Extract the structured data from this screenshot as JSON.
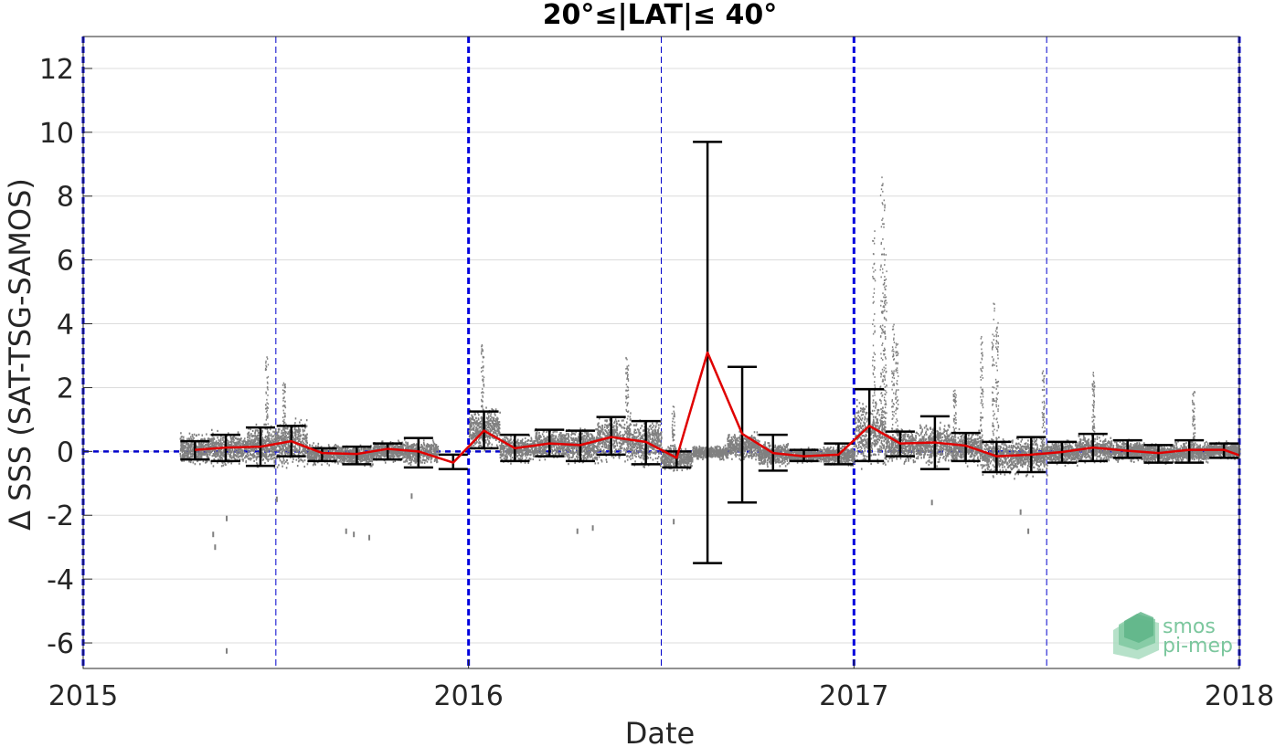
{
  "chart_data": {
    "type": "scatter",
    "title": "20°≤|LAT|≤ 40°",
    "xlabel": "Date",
    "ylabel": "Δ SSS (SAT-TSG-SAMOS)",
    "xlim": [
      2015.0,
      2018.0
    ],
    "ylim": [
      -6.8,
      13.0
    ],
    "x_ticks": [
      {
        "value": 2015,
        "label": "2015"
      },
      {
        "value": 2016,
        "label": "2016"
      },
      {
        "value": 2017,
        "label": "2017"
      },
      {
        "value": 2018,
        "label": "2018"
      }
    ],
    "y_ticks": [
      {
        "value": -6,
        "label": "-6"
      },
      {
        "value": -4,
        "label": "-4"
      },
      {
        "value": -2,
        "label": "-2"
      },
      {
        "value": 0,
        "label": "0"
      },
      {
        "value": 2,
        "label": "2"
      },
      {
        "value": 4,
        "label": "4"
      },
      {
        "value": 6,
        "label": "6"
      },
      {
        "value": 8,
        "label": "8"
      },
      {
        "value": 10,
        "label": "10"
      },
      {
        "value": 12,
        "label": "12"
      }
    ],
    "grid": true,
    "zero_reference": {
      "value": 0,
      "color": "#0000cc"
    },
    "year_lines": [
      2015.0,
      2016.0,
      2017.0,
      2018.0
    ],
    "midyear_lines": [
      2015.5,
      2016.5,
      2017.5
    ],
    "monthly_mean": {
      "color": "#e00000",
      "x": [
        2015.29,
        2015.37,
        2015.46,
        2015.54,
        2015.62,
        2015.71,
        2015.79,
        2015.87,
        2015.96,
        2016.04,
        2016.12,
        2016.21,
        2016.29,
        2016.37,
        2016.46,
        2016.54,
        2016.62,
        2016.71,
        2016.79,
        2016.87,
        2016.96,
        2017.04,
        2017.12,
        2017.21,
        2017.29,
        2017.37,
        2017.46,
        2017.54,
        2017.62,
        2017.71,
        2017.79,
        2017.87,
        2017.96,
        2018.0
      ],
      "y": [
        0.05,
        0.12,
        0.15,
        0.32,
        -0.05,
        -0.08,
        0.08,
        0.0,
        -0.35,
        0.65,
        0.1,
        0.25,
        0.2,
        0.45,
        0.3,
        -0.2,
        3.1,
        0.55,
        -0.05,
        -0.15,
        -0.1,
        0.8,
        0.25,
        0.28,
        0.18,
        -0.15,
        -0.1,
        -0.02,
        0.12,
        0.02,
        -0.05,
        0.05,
        0.05,
        -0.12
      ]
    },
    "error_bars": {
      "color": "#000000",
      "bars": [
        {
          "x": 2015.29,
          "low": -0.25,
          "high": 0.32
        },
        {
          "x": 2015.37,
          "low": -0.3,
          "high": 0.52
        },
        {
          "x": 2015.46,
          "low": -0.45,
          "high": 0.75
        },
        {
          "x": 2015.54,
          "low": -0.15,
          "high": 0.8
        },
        {
          "x": 2015.62,
          "low": -0.3,
          "high": 0.1
        },
        {
          "x": 2015.71,
          "low": -0.4,
          "high": 0.15
        },
        {
          "x": 2015.79,
          "low": -0.25,
          "high": 0.25
        },
        {
          "x": 2015.87,
          "low": -0.5,
          "high": 0.42
        },
        {
          "x": 2015.96,
          "low": -0.55,
          "high": -0.1
        },
        {
          "x": 2016.04,
          "low": 0.1,
          "high": 1.25
        },
        {
          "x": 2016.12,
          "low": -0.3,
          "high": 0.52
        },
        {
          "x": 2016.21,
          "low": -0.15,
          "high": 0.68
        },
        {
          "x": 2016.29,
          "low": -0.3,
          "high": 0.65
        },
        {
          "x": 2016.37,
          "low": -0.1,
          "high": 1.08
        },
        {
          "x": 2016.46,
          "low": -0.4,
          "high": 0.95
        },
        {
          "x": 2016.54,
          "low": -0.5,
          "high": 0.0
        },
        {
          "x": 2016.62,
          "low": -3.5,
          "high": 9.7
        },
        {
          "x": 2016.71,
          "low": -1.6,
          "high": 2.65
        },
        {
          "x": 2016.79,
          "low": -0.6,
          "high": 0.52
        },
        {
          "x": 2016.87,
          "low": -0.3,
          "high": 0.05
        },
        {
          "x": 2016.96,
          "low": -0.4,
          "high": 0.25
        },
        {
          "x": 2017.04,
          "low": -0.3,
          "high": 1.95
        },
        {
          "x": 2017.12,
          "low": -0.15,
          "high": 0.62
        },
        {
          "x": 2017.21,
          "low": -0.55,
          "high": 1.1
        },
        {
          "x": 2017.29,
          "low": -0.3,
          "high": 0.58
        },
        {
          "x": 2017.37,
          "low": -0.65,
          "high": 0.3
        },
        {
          "x": 2017.46,
          "low": -0.65,
          "high": 0.45
        },
        {
          "x": 2017.54,
          "low": -0.35,
          "high": 0.3
        },
        {
          "x": 2017.62,
          "low": -0.3,
          "high": 0.55
        },
        {
          "x": 2017.71,
          "low": -0.2,
          "high": 0.35
        },
        {
          "x": 2017.79,
          "low": -0.35,
          "high": 0.2
        },
        {
          "x": 2017.87,
          "low": -0.35,
          "high": 0.35
        },
        {
          "x": 2017.96,
          "low": -0.2,
          "high": 0.25
        }
      ]
    },
    "scatter_clusters": {
      "color": "#808080",
      "clusters": [
        {
          "x_start": 2015.25,
          "x_end": 2015.33,
          "center": 0.1,
          "spread": 0.45
        },
        {
          "x_start": 2015.33,
          "x_end": 2015.42,
          "center": 0.1,
          "spread": 0.5
        },
        {
          "x_start": 2015.42,
          "x_end": 2015.5,
          "center": 0.2,
          "spread": 0.6
        },
        {
          "x_start": 2015.5,
          "x_end": 2015.58,
          "center": 0.3,
          "spread": 0.7
        },
        {
          "x_start": 2015.58,
          "x_end": 2015.67,
          "center": -0.05,
          "spread": 0.3
        },
        {
          "x_start": 2015.67,
          "x_end": 2015.75,
          "center": -0.1,
          "spread": 0.3
        },
        {
          "x_start": 2015.75,
          "x_end": 2015.83,
          "center": 0.05,
          "spread": 0.3
        },
        {
          "x_start": 2015.83,
          "x_end": 2015.92,
          "center": 0.0,
          "spread": 0.35
        },
        {
          "x_start": 2016.0,
          "x_end": 2016.08,
          "center": 0.7,
          "spread": 0.6
        },
        {
          "x_start": 2016.08,
          "x_end": 2016.17,
          "center": 0.1,
          "spread": 0.4
        },
        {
          "x_start": 2016.17,
          "x_end": 2016.25,
          "center": 0.25,
          "spread": 0.45
        },
        {
          "x_start": 2016.25,
          "x_end": 2016.33,
          "center": 0.2,
          "spread": 0.5
        },
        {
          "x_start": 2016.33,
          "x_end": 2016.42,
          "center": 0.45,
          "spread": 0.7
        },
        {
          "x_start": 2016.42,
          "x_end": 2016.5,
          "center": 0.3,
          "spread": 0.7
        },
        {
          "x_start": 2016.5,
          "x_end": 2016.58,
          "center": -0.2,
          "spread": 0.35
        },
        {
          "x_start": 2016.58,
          "x_end": 2016.67,
          "center": 0.0,
          "spread": 0.2
        },
        {
          "x_start": 2016.67,
          "x_end": 2016.75,
          "center": 0.2,
          "spread": 0.4
        },
        {
          "x_start": 2016.75,
          "x_end": 2016.83,
          "center": -0.05,
          "spread": 0.35
        },
        {
          "x_start": 2016.83,
          "x_end": 2016.92,
          "center": -0.1,
          "spread": 0.2
        },
        {
          "x_start": 2016.92,
          "x_end": 2017.0,
          "center": -0.1,
          "spread": 0.3
        },
        {
          "x_start": 2017.0,
          "x_end": 2017.08,
          "center": 0.6,
          "spread": 1.0
        },
        {
          "x_start": 2017.08,
          "x_end": 2017.17,
          "center": 0.2,
          "spread": 0.5
        },
        {
          "x_start": 2017.17,
          "x_end": 2017.25,
          "center": 0.25,
          "spread": 0.6
        },
        {
          "x_start": 2017.25,
          "x_end": 2017.33,
          "center": 0.15,
          "spread": 0.5
        },
        {
          "x_start": 2017.33,
          "x_end": 2017.42,
          "center": -0.15,
          "spread": 0.55
        },
        {
          "x_start": 2017.42,
          "x_end": 2017.5,
          "center": -0.1,
          "spread": 0.55
        },
        {
          "x_start": 2017.5,
          "x_end": 2017.58,
          "center": 0.0,
          "spread": 0.35
        },
        {
          "x_start": 2017.58,
          "x_end": 2017.67,
          "center": 0.1,
          "spread": 0.4
        },
        {
          "x_start": 2017.67,
          "x_end": 2017.75,
          "center": 0.05,
          "spread": 0.3
        },
        {
          "x_start": 2017.75,
          "x_end": 2017.83,
          "center": -0.05,
          "spread": 0.3
        },
        {
          "x_start": 2017.83,
          "x_end": 2017.92,
          "center": 0.0,
          "spread": 0.3
        },
        {
          "x_start": 2017.92,
          "x_end": 2018.0,
          "center": 0.05,
          "spread": 0.25
        }
      ],
      "spikes": [
        {
          "x": 2015.475,
          "low": -0.3,
          "high": 3.1
        },
        {
          "x": 2015.52,
          "low": 0.3,
          "high": 2.2
        },
        {
          "x": 2016.035,
          "low": 0.5,
          "high": 3.4
        },
        {
          "x": 2016.41,
          "low": 0.0,
          "high": 3.0
        },
        {
          "x": 2016.53,
          "low": -0.2,
          "high": 1.5
        },
        {
          "x": 2017.07,
          "low": 0.0,
          "high": 8.7
        },
        {
          "x": 2017.075,
          "low": 0.5,
          "high": 8.0
        },
        {
          "x": 2017.05,
          "low": 0.5,
          "high": 7.0
        },
        {
          "x": 2017.08,
          "low": 1.0,
          "high": 6.2
        },
        {
          "x": 2017.1,
          "low": 0.0,
          "high": 4.0
        },
        {
          "x": 2017.11,
          "low": 0.0,
          "high": 3.5
        },
        {
          "x": 2017.33,
          "low": 0.0,
          "high": 3.7
        },
        {
          "x": 2017.36,
          "low": 0.0,
          "high": 4.7
        },
        {
          "x": 2017.37,
          "low": 0.0,
          "high": 4.3
        },
        {
          "x": 2017.26,
          "low": 0.0,
          "high": 2.0
        },
        {
          "x": 2017.49,
          "low": 0.0,
          "high": 2.6
        },
        {
          "x": 2017.62,
          "low": 0.0,
          "high": 2.5
        },
        {
          "x": 2017.88,
          "low": 0.0,
          "high": 1.9
        }
      ],
      "outliers": [
        {
          "x": 2015.335,
          "y": -2.6
        },
        {
          "x": 2015.34,
          "y": -3.0
        },
        {
          "x": 2015.37,
          "y": -2.1
        },
        {
          "x": 2015.37,
          "y": -6.25
        },
        {
          "x": 2015.5,
          "y": -1.5
        },
        {
          "x": 2015.68,
          "y": -2.5
        },
        {
          "x": 2015.7,
          "y": -2.6
        },
        {
          "x": 2015.74,
          "y": -2.7
        },
        {
          "x": 2015.85,
          "y": -1.4
        },
        {
          "x": 2016.28,
          "y": -2.5
        },
        {
          "x": 2016.32,
          "y": -2.4
        },
        {
          "x": 2016.53,
          "y": -2.2
        },
        {
          "x": 2017.2,
          "y": -1.6
        },
        {
          "x": 2017.45,
          "y": -2.5
        },
        {
          "x": 2017.43,
          "y": -1.9
        }
      ]
    }
  },
  "logo": {
    "line1": "smos",
    "line2": "pi-mep"
  }
}
